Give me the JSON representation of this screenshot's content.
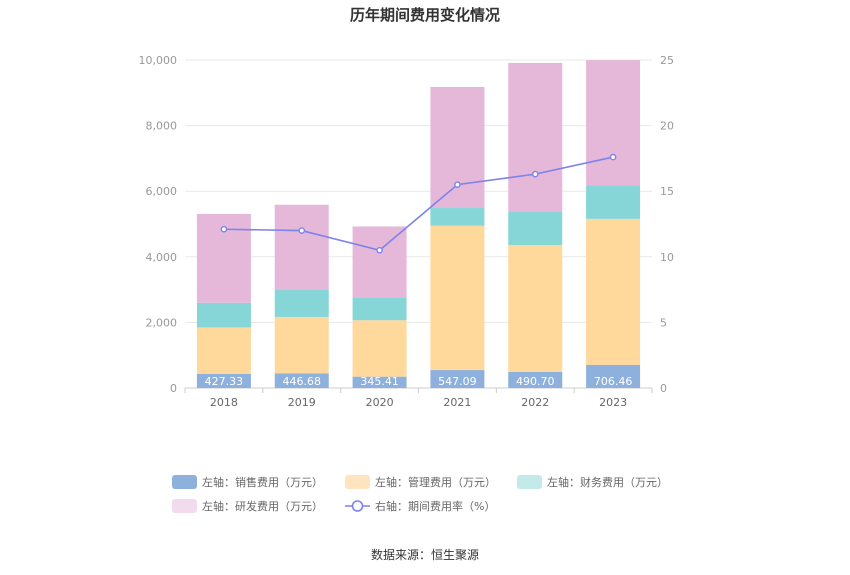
{
  "chart_data": {
    "type": "bar",
    "stacked": true,
    "title": "历年期间费用变化情况",
    "categories": [
      "2018",
      "2019",
      "2020",
      "2021",
      "2022",
      "2023"
    ],
    "left_axis": {
      "min": 0,
      "max": 10000,
      "ticks": [
        "0",
        "2,000",
        "4,000",
        "6,000",
        "8,000",
        "10,000"
      ]
    },
    "right_axis": {
      "min": 0,
      "max": 25,
      "ticks": [
        "0",
        "5",
        "10",
        "15",
        "20",
        "25"
      ]
    },
    "series": [
      {
        "name": "左轴：销售费用（万元）",
        "axis": "left",
        "color": "#8eb0dc",
        "values": [
          427.33,
          446.68,
          345.41,
          547.09,
          490.7,
          706.46
        ],
        "labels": [
          "427.33",
          "446.68",
          "345.41",
          "547.09",
          "490.70",
          "706.46"
        ]
      },
      {
        "name": "左轴：管理费用（万元）",
        "axis": "left",
        "color": "#ffd89c",
        "values": [
          1420,
          1720,
          1720,
          4400,
          3870,
          4450
        ]
      },
      {
        "name": "左轴：财务费用（万元）",
        "axis": "left",
        "color": "#86d6d8",
        "values": [
          750,
          840,
          700,
          540,
          1030,
          1020
        ]
      },
      {
        "name": "左轴：研发费用（万元）",
        "axis": "left",
        "color": "#e5b8d9",
        "values": [
          2710,
          2580,
          2160,
          3690,
          4520,
          3820
        ]
      },
      {
        "name": "右轴：期间费用率（%）",
        "axis": "right",
        "type": "line",
        "color": "#7b83ec",
        "values": [
          12.1,
          12.0,
          10.5,
          15.5,
          16.3,
          17.6
        ]
      }
    ],
    "legend_position": "bottom",
    "grid": true
  },
  "source": "数据来源：恒生聚源"
}
